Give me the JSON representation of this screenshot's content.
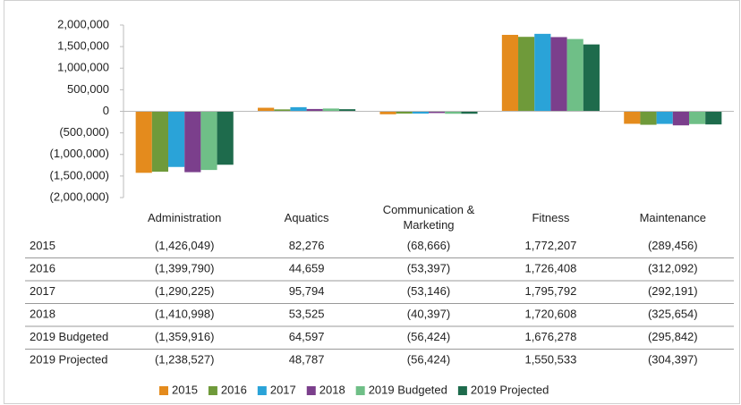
{
  "chart_data": {
    "type": "bar",
    "categories": [
      "Administration",
      "Aquatics",
      "Communication & Marketing",
      "Fitness",
      "Maintenance"
    ],
    "series": [
      {
        "name": "2015",
        "color": "#e48b1d",
        "values": [
          -1426049,
          82276,
          -68666,
          1772207,
          -289456
        ],
        "value_labels": [
          "(1,426,049)",
          "82,276",
          "(68,666)",
          "1,772,207",
          "(289,456)"
        ]
      },
      {
        "name": "2016",
        "color": "#6f9a3a",
        "values": [
          -1399790,
          44659,
          -53397,
          1726408,
          -312092
        ],
        "value_labels": [
          "(1,399,790)",
          "44,659",
          "(53,397)",
          "1,726,408",
          "(312,092)"
        ]
      },
      {
        "name": "2017",
        "color": "#2aa3d8",
        "values": [
          -1290225,
          95794,
          -53146,
          1795792,
          -292191
        ],
        "value_labels": [
          "(1,290,225)",
          "95,794",
          "(53,146)",
          "1,795,792",
          "(292,191)"
        ]
      },
      {
        "name": "2018",
        "color": "#7b3f8c",
        "values": [
          -1410998,
          53525,
          -40397,
          1720608,
          -325654
        ],
        "value_labels": [
          "(1,410,998)",
          "53,525",
          "(40,397)",
          "1,720,608",
          "(325,654)"
        ]
      },
      {
        "name": "2019 Budgeted",
        "color": "#6fbf87",
        "values": [
          -1359916,
          64597,
          -56424,
          1676278,
          -295842
        ],
        "value_labels": [
          "(1,359,916)",
          "64,597",
          "(56,424)",
          "1,676,278",
          "(295,842)"
        ]
      },
      {
        "name": "2019 Projected",
        "color": "#1e6b4c",
        "values": [
          -1238527,
          48787,
          -56424,
          1550533,
          -304397
        ],
        "value_labels": [
          "(1,238,527)",
          "48,787",
          "(56,424)",
          "1,550,533",
          "(304,397)"
        ]
      }
    ],
    "ylim": [
      -2000000,
      2000000
    ],
    "yticks": [
      {
        "value": -2000000,
        "label": "(2,000,000)"
      },
      {
        "value": -1500000,
        "label": "(1,500,000)"
      },
      {
        "value": -1000000,
        "label": "(1,000,000)"
      },
      {
        "value": -500000,
        "label": "(500,000)"
      },
      0,
      {
        "value": 500000,
        "label": "500,000"
      },
      {
        "value": 1000000,
        "label": "1,000,000"
      },
      {
        "value": 1500000,
        "label": "1,500,000"
      },
      {
        "value": 2000000,
        "label": "2,000,000"
      }
    ],
    "grid": false,
    "legend": "bottom"
  }
}
